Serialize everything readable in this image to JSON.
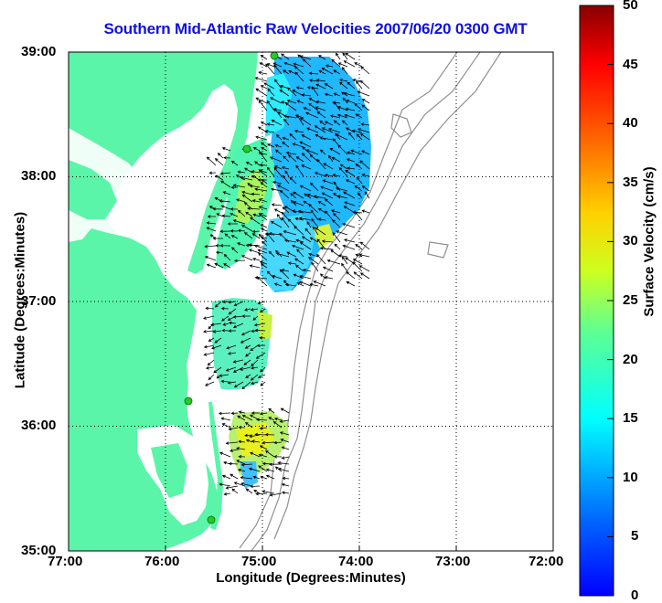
{
  "title": "Southern Mid-Atlantic Raw Velocities 2007/06/20 0300 GMT",
  "x_axis": {
    "label": "Longitude (Degrees:Minutes)",
    "ticks": [
      "77:00",
      "76:00",
      "75:00",
      "74:00",
      "73:00",
      "72:00"
    ]
  },
  "y_axis": {
    "label": "Latitude (Degrees:Minutes)",
    "ticks": [
      "39:00",
      "38:00",
      "37:00",
      "36:00",
      "35:00"
    ]
  },
  "colorbar": {
    "label": "Surface Velocity (cm/s)",
    "ticks": [
      "50",
      "45",
      "40",
      "35",
      "30",
      "25",
      "20",
      "15",
      "10",
      "5",
      "0"
    ],
    "range": [
      0,
      50
    ],
    "colormap": "jet"
  },
  "map": {
    "lon_range": [
      -77,
      -72
    ],
    "lat_range": [
      35,
      39
    ],
    "land_color": "#5af5a8",
    "vector_color": "#000000",
    "bathymetry_color": "#909090",
    "station_color": "#22cc22",
    "grid": "dotted"
  }
}
